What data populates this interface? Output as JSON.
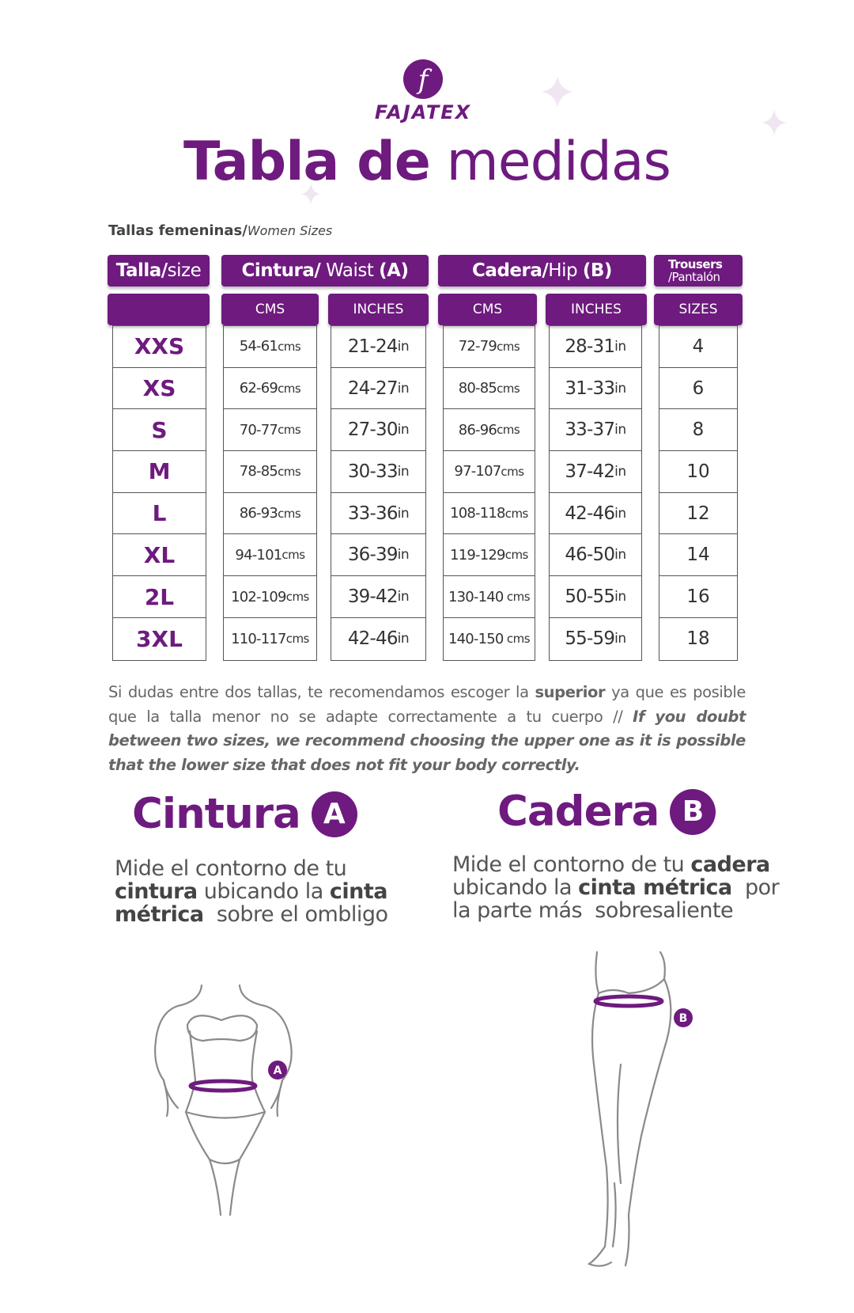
{
  "logo": {
    "letter": "f",
    "name": "FAJATEX"
  },
  "title": {
    "bold": "Tabla de",
    "light": "medidas"
  },
  "subtitle": {
    "bold": "Tallas femeninas/",
    "italic": "Women Sizes"
  },
  "table": {
    "headers": [
      [
        {
          "text": "Talla/",
          "style": "bold"
        },
        {
          "text": "size",
          "style": "regular"
        }
      ],
      [
        {
          "text": "Cintura/",
          "style": "bold"
        },
        {
          "text": " Waist ",
          "style": "regular"
        },
        {
          "text": "(A)",
          "style": "bold"
        }
      ],
      [
        {
          "text": "Cadera/",
          "style": "bold"
        },
        {
          "text": "Hip ",
          "style": "regular"
        },
        {
          "text": "(B)",
          "style": "bold"
        }
      ],
      [
        {
          "text": "Trousers",
          "style": "bold"
        },
        {
          "text": "/Pantalón",
          "style": "regular"
        }
      ]
    ],
    "subheaders": [
      "CMS",
      "INCHES",
      "CMS",
      "INCHES",
      "SIZES"
    ],
    "rows": [
      [
        "XXS",
        {
          "value": "54-61",
          "unit": "cms"
        },
        {
          "value": "21-24",
          "unit": "in"
        },
        {
          "value": "72-79",
          "unit": "cms"
        },
        {
          "value": "28-31",
          "unit": "in"
        },
        "4"
      ],
      [
        "XS",
        {
          "value": "62-69",
          "unit": "cms"
        },
        {
          "value": "24-27",
          "unit": "in"
        },
        {
          "value": "80-85",
          "unit": "cms"
        },
        {
          "value": "31-33",
          "unit": "in"
        },
        "6"
      ],
      [
        "S",
        {
          "value": "70-77",
          "unit": "cms"
        },
        {
          "value": "27-30",
          "unit": "in"
        },
        {
          "value": "86-96",
          "unit": "cms"
        },
        {
          "value": "33-37",
          "unit": "in"
        },
        "8"
      ],
      [
        "M",
        {
          "value": "78-85",
          "unit": "cms"
        },
        {
          "value": "30-33",
          "unit": "in"
        },
        {
          "value": "97-107",
          "unit": "cms"
        },
        {
          "value": "37-42",
          "unit": "in"
        },
        "10"
      ],
      [
        "L",
        {
          "value": "86-93",
          "unit": "cms"
        },
        {
          "value": "33-36",
          "unit": "in"
        },
        {
          "value": "108-118",
          "unit": "cms"
        },
        {
          "value": "42-46",
          "unit": "in"
        },
        "12"
      ],
      [
        "XL",
        {
          "value": "94-101",
          "unit": "cms"
        },
        {
          "value": "36-39",
          "unit": "in"
        },
        {
          "value": "119-129",
          "unit": "cms"
        },
        {
          "value": "46-50",
          "unit": "in"
        },
        "14"
      ],
      [
        "2L",
        {
          "value": "102-109",
          "unit": "cms"
        },
        {
          "value": "39-42",
          "unit": "in"
        },
        {
          "value": "130-140",
          "unit": " cms"
        },
        {
          "value": "50-55",
          "unit": "in"
        },
        "16"
      ],
      [
        "3XL",
        {
          "value": "110-117",
          "unit": "cms"
        },
        {
          "value": "42-46",
          "unit": "in"
        },
        {
          "value": "140-150",
          "unit": " cms"
        },
        {
          "value": "55-59",
          "unit": "in"
        },
        "18"
      ]
    ]
  },
  "note": [
    {
      "text": "Si dudas entre dos tallas,  te recomendamos escoger la ",
      "style": "regular"
    },
    {
      "text": "superior",
      "style": "bold"
    },
    {
      "text": " ya que es posible que la talla menor no se adapte correctamente a tu cuerpo // ",
      "style": "regular"
    },
    {
      "text": "If you doubt between two sizes, we recommend choosing the upper one as it is possible that the lower size that does not fit your body correctly.",
      "style": "bold-italic"
    }
  ],
  "sections": [
    {
      "title": "Cintura",
      "badge": "A",
      "figure_label": "A",
      "lines": [
        [
          {
            "text": "Mide el contorno de tu",
            "style": "regular"
          }
        ],
        [
          {
            "text": "cintura",
            "style": "bold"
          },
          {
            "text": " ubicando la ",
            "style": "regular"
          },
          {
            "text": "cinta",
            "style": "bold"
          }
        ],
        [
          {
            "text": "métrica",
            "style": "bold"
          },
          {
            "text": "  sobre el ombligo",
            "style": "regular"
          }
        ]
      ]
    },
    {
      "title": "Cadera",
      "badge": "B",
      "figure_label": "B",
      "lines": [
        [
          {
            "text": "Mide el contorno de tu ",
            "style": "regular"
          },
          {
            "text": "cadera",
            "style": "bold"
          }
        ],
        [
          {
            "text": "ubicando la ",
            "style": "regular"
          },
          {
            "text": "cinta métrica",
            "style": "bold"
          },
          {
            "text": "  por",
            "style": "regular"
          }
        ],
        [
          {
            "text": "la parte más  sobresaliente",
            "style": "regular"
          }
        ]
      ]
    }
  ]
}
